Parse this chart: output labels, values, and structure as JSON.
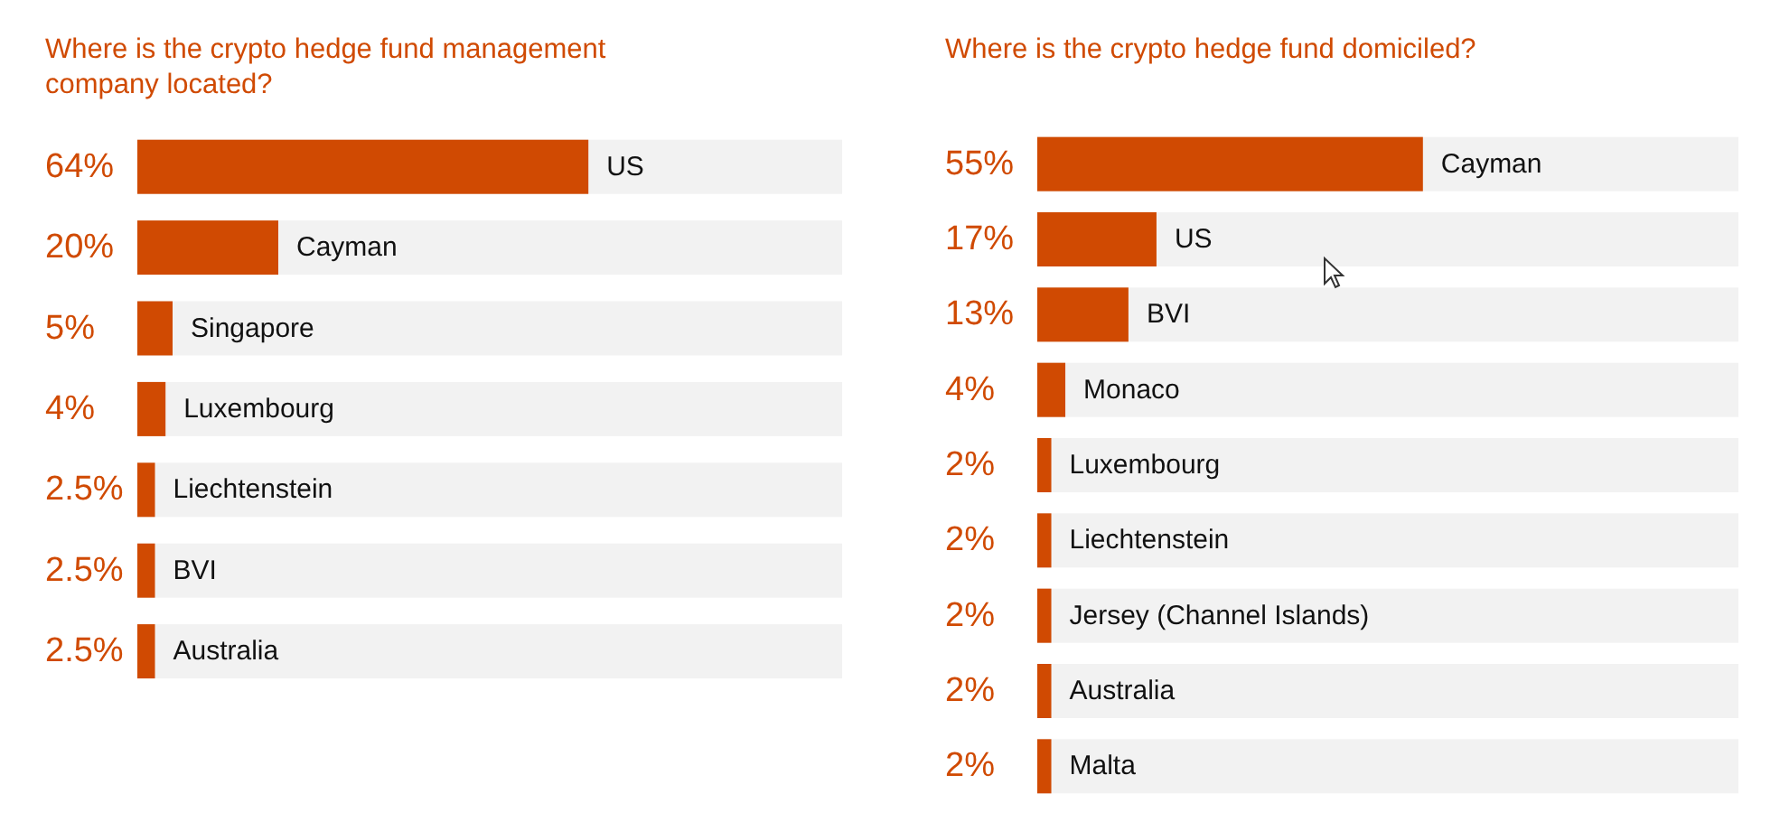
{
  "chart_data": [
    {
      "type": "bar",
      "orientation": "horizontal",
      "title": "Where is the crypto hedge fund management company located?",
      "categories": [
        "US",
        "Cayman",
        "Singapore",
        "Luxembourg",
        "Liechtenstein",
        "BVI",
        "Australia"
      ],
      "values": [
        64,
        20,
        5,
        4,
        2.5,
        2.5,
        2.5
      ],
      "value_labels": [
        "64%",
        "20%",
        "5%",
        "4%",
        "2.5%",
        "2.5%",
        "2.5%"
      ],
      "color": "#d04a02",
      "xlim": [
        0,
        100
      ],
      "tick_labels": false
    },
    {
      "type": "bar",
      "orientation": "horizontal",
      "title": "Where is the crypto hedge fund domiciled?",
      "categories": [
        "Cayman",
        "US",
        "BVI",
        "Monaco",
        "Luxembourg",
        "Liechtenstein",
        "Jersey (Channel Islands)",
        "Australia",
        "Malta"
      ],
      "values": [
        55,
        17,
        13,
        4,
        2,
        2,
        2,
        2,
        2
      ],
      "value_labels": [
        "55%",
        "17%",
        "13%",
        "4%",
        "2%",
        "2%",
        "2%",
        "2%",
        "2%"
      ],
      "color": "#d04a02",
      "xlim": [
        0,
        100
      ],
      "tick_labels": false
    }
  ]
}
